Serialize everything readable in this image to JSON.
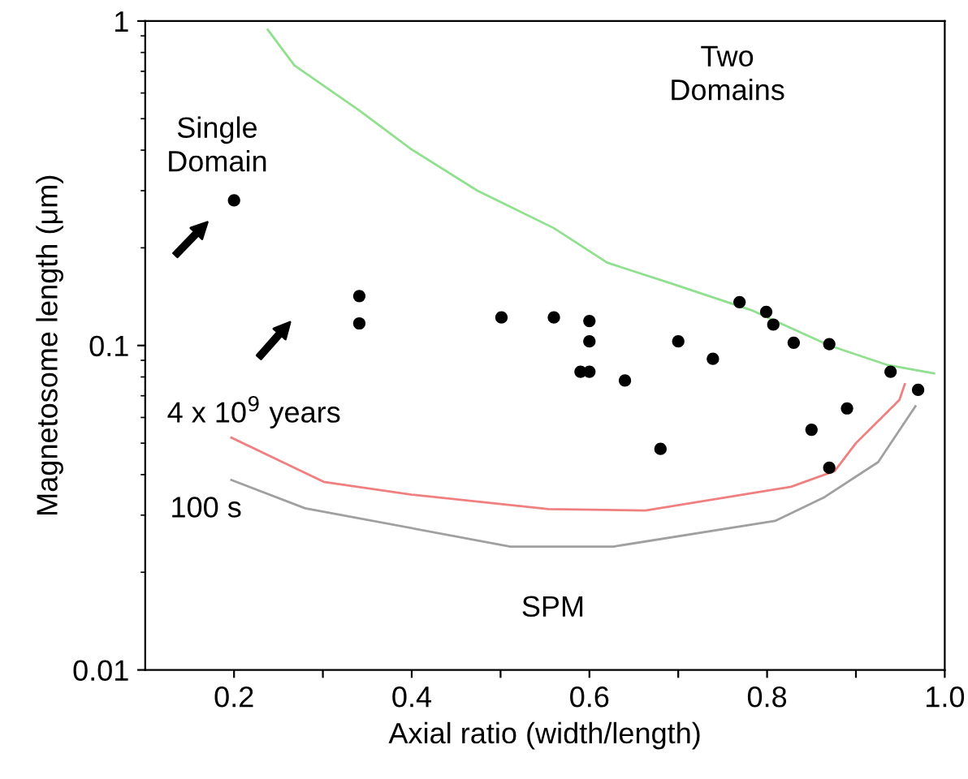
{
  "chart_data": {
    "type": "scatter",
    "xlabel": "Axial ratio (width/length)",
    "ylabel": "Magnetosome length (μm)",
    "log": "y",
    "xlim": [
      0.1,
      1.0
    ],
    "ylim": [
      0.01,
      1
    ],
    "xticks": [
      0.2,
      {
        "value": 0.3,
        "label": null
      },
      0.4,
      {
        "value": 0.5,
        "label": null
      },
      0.6,
      {
        "value": 0.7,
        "label": null
      },
      0.8,
      {
        "value": 0.9,
        "label": null
      },
      {
        "value": 1.0,
        "label": "1.0"
      }
    ],
    "yticks": [
      0.01,
      0.1,
      1
    ],
    "grid": false,
    "legend": false,
    "series": [
      {
        "color": "#000000",
        "marker": "circle",
        "x": [
          0.2,
          0.341,
          0.341,
          0.501,
          0.56,
          0.6,
          0.6,
          0.59,
          0.6,
          0.64,
          0.68,
          0.7,
          0.739,
          0.769,
          0.799,
          0.807,
          0.83,
          0.87,
          0.939,
          0.97,
          0.89,
          0.85,
          0.87
        ],
        "values": [
          0.28,
          0.142,
          0.117,
          0.122,
          0.122,
          0.119,
          0.103,
          0.083,
          0.083,
          0.078,
          0.048,
          0.103,
          0.091,
          0.136,
          0.127,
          0.116,
          0.102,
          0.101,
          0.083,
          0.073,
          0.064,
          0.055,
          0.042
        ]
      },
      {
        "type": "line",
        "color": "#90e090",
        "x": [
          0.238,
          0.268,
          0.341,
          0.401,
          0.474,
          0.56,
          0.62,
          0.693,
          0.784,
          0.87,
          0.936,
          0.988
        ],
        "values": [
          0.94,
          0.73,
          0.53,
          0.4,
          0.3,
          0.23,
          0.18,
          0.155,
          0.128,
          0.1,
          0.087,
          0.082
        ]
      },
      {
        "type": "line",
        "color": "#f08080",
        "x": [
          0.197,
          0.301,
          0.4,
          0.554,
          0.663,
          0.827,
          0.876,
          0.9,
          0.949,
          0.955
        ],
        "values": [
          0.052,
          0.038,
          0.0347,
          0.0313,
          0.031,
          0.0367,
          0.041,
          0.05,
          0.068,
          0.076
        ]
      },
      {
        "type": "line",
        "color": "#a0a0a0",
        "x": [
          0.197,
          0.28,
          0.511,
          0.627,
          0.809,
          0.864,
          0.925,
          0.967
        ],
        "values": [
          0.0385,
          0.0315,
          0.024,
          0.024,
          0.0288,
          0.034,
          0.0437,
          0.065
        ]
      }
    ],
    "annotations": [
      "Single\nDomain",
      "Two\nDomains",
      "4 x 10$^{9}$ years",
      "100 s",
      "SPM"
    ]
  }
}
